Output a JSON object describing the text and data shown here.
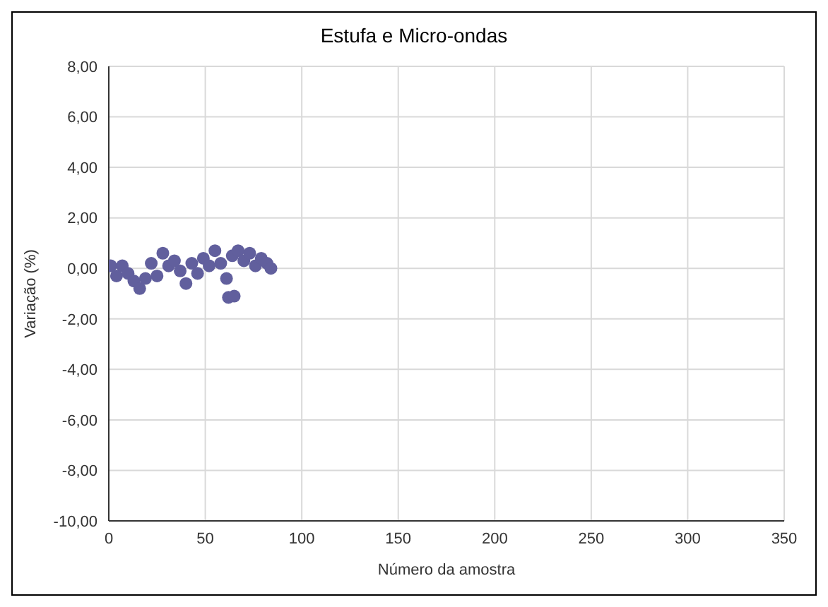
{
  "chart_data": {
    "type": "scatter",
    "title": "Estufa e Micro-ondas",
    "xlabel": "Número da amostra",
    "ylabel": "Variação (%)",
    "x": [
      1,
      4,
      7,
      10,
      13,
      16,
      19,
      22,
      25,
      28,
      31,
      34,
      37,
      40,
      43,
      46,
      49,
      52,
      55,
      58,
      61,
      62,
      64,
      65,
      67,
      70,
      73,
      76,
      79,
      82,
      84
    ],
    "series": [
      {
        "color": "#615f9d",
        "values": [
          0.1,
          -0.3,
          0.1,
          -0.2,
          -0.5,
          -0.8,
          -0.4,
          0.2,
          -0.3,
          0.6,
          0.1,
          0.3,
          -0.1,
          -0.6,
          0.2,
          -0.2,
          0.4,
          0.1,
          0.7,
          0.2,
          -0.4,
          -1.15,
          0.5,
          -1.1,
          0.7,
          0.3,
          0.6,
          0.1,
          0.4,
          0.2,
          0
        ]
      }
    ],
    "xlim": [
      0,
      350
    ],
    "xticks": [
      0,
      50,
      100,
      150,
      200,
      250,
      300,
      350
    ],
    "ylim": [
      -10,
      8
    ],
    "yticks": [
      {
        "value": -10,
        "label": "-10,00"
      },
      {
        "value": -8,
        "label": "-8,00"
      },
      {
        "value": -6,
        "label": "-6,00"
      },
      {
        "value": -4,
        "label": "-4,00"
      },
      {
        "value": -2,
        "label": "-2,00"
      },
      {
        "value": 0,
        "label": "0,00"
      },
      {
        "value": 2,
        "label": "2,00"
      },
      {
        "value": 4,
        "label": "4,00"
      },
      {
        "value": 6,
        "label": "6,00"
      },
      {
        "value": 8,
        "label": "8,00"
      }
    ],
    "grid": true,
    "marker": "circle"
  }
}
